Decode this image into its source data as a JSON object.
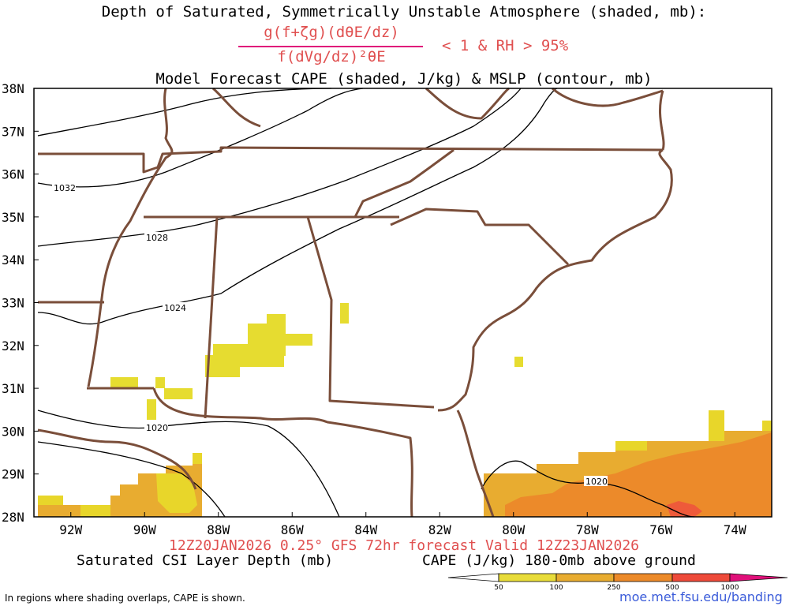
{
  "header": {
    "title_line1": "Depth of Saturated, Symmetrically Unstable Atmosphere (shaded, mb):",
    "fraction_numerator": "g(f+ζg)(dθE/dz)",
    "fraction_denominator": "f(dVg/dz)²θE",
    "condition": "< 1 & RH > 95%",
    "title_line2": "Model Forecast CAPE (shaded, J/kg) & MSLP (contour, mb)"
  },
  "map": {
    "lat_labels": [
      "38N",
      "37N",
      "36N",
      "35N",
      "34N",
      "33N",
      "32N",
      "31N",
      "30N",
      "29N",
      "28N"
    ],
    "lat_values": [
      38,
      37,
      36,
      35,
      34,
      33,
      32,
      31,
      30,
      29,
      28
    ],
    "lon_labels": [
      "92W",
      "90W",
      "88W",
      "86W",
      "84W",
      "82W",
      "80W",
      "78W",
      "76W",
      "74W"
    ],
    "lon_values": [
      -92,
      -90,
      -88,
      -86,
      -84,
      -82,
      -80,
      -78,
      -76,
      -74
    ],
    "extent": {
      "lon_min": -93,
      "lon_max": -73,
      "lat_min": 28,
      "lat_max": 38
    },
    "mslp_labels": [
      "1032",
      "1028",
      "1024",
      "1020",
      "1020"
    ],
    "colors": {
      "border": "#7a4e3a",
      "contour": "#000000",
      "csi": "#e6dc30",
      "cape_50": "#e8d62a",
      "cape_100": "#e8ac30",
      "cape_250": "#ec8a2a",
      "cape_500": "#ee5a3a",
      "cape_1000": "#e0107a"
    }
  },
  "footer": {
    "valid_line": "12Z20JAN2026 0.25° GFS 72hr forecast Valid 12Z23JAN2026",
    "csi_label": "Saturated CSI Layer Depth (mb)",
    "cape_label": "CAPE (J/kg) 180-0mb above ground",
    "footnote": "In regions where shading overlaps, CAPE is shown.",
    "url": "moe.met.fsu.edu/banding"
  },
  "colorbar": {
    "ticks": [
      "50",
      "100",
      "250",
      "500",
      "1000"
    ],
    "colors": [
      "#ffffff",
      "#e8dc3a",
      "#e8ac30",
      "#ec8a2a",
      "#ee4a3a",
      "#e0107a"
    ]
  }
}
